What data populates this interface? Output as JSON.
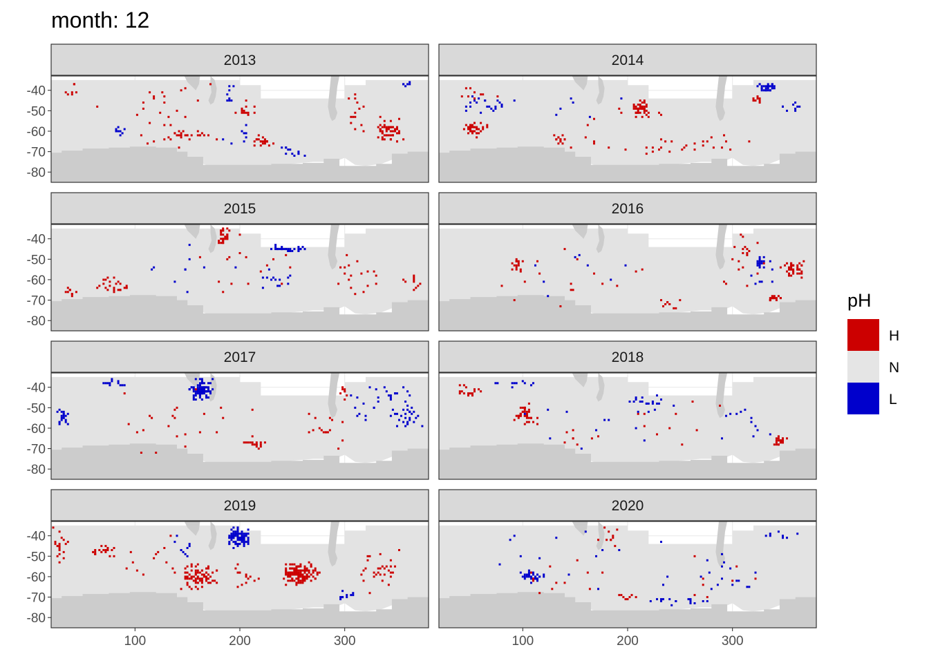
{
  "chart_data": {
    "type": "heatmap",
    "title": "month: 12",
    "xlabel": "",
    "ylabel": "",
    "xlim": [
      20,
      380
    ],
    "ylim": [
      -85,
      -33
    ],
    "x_ticks": [
      100,
      200,
      300
    ],
    "y_ticks": [
      -40,
      -50,
      -60,
      -70,
      -80
    ],
    "x_tick_labels": [
      "100",
      "200",
      "300"
    ],
    "y_tick_labels": [
      "-40",
      "-50",
      "-60",
      "-70",
      "-80"
    ],
    "legend": {
      "title": "pH",
      "position": "right",
      "entries": [
        {
          "label": "H",
          "color": "#cc0000"
        },
        {
          "label": "N",
          "color": "#e5e5e5"
        },
        {
          "label": "L",
          "color": "#0000cc"
        }
      ]
    },
    "colors": {
      "ocean": "#e3e3e3",
      "land": "#cccccc",
      "panel_background": "#ffffff",
      "strip_background": "#d9d9d9",
      "H": "#cc0000",
      "L": "#0000cc"
    },
    "panels": [
      {
        "year": "2013",
        "clusters": [
          {
            "c": "H",
            "x": 342,
            "y": -60,
            "w": 14,
            "h": 7,
            "n": 60
          },
          {
            "c": "H",
            "x": 223,
            "y": -65,
            "w": 10,
            "h": 3,
            "n": 22
          },
          {
            "c": "H",
            "x": 206,
            "y": -50,
            "w": 10,
            "h": 6,
            "n": 14
          },
          {
            "c": "H",
            "x": 150,
            "y": -62,
            "w": 28,
            "h": 3,
            "n": 22
          },
          {
            "c": "H",
            "x": 310,
            "y": -52,
            "w": 12,
            "h": 14,
            "n": 14
          },
          {
            "c": "H",
            "x": 40,
            "y": -40,
            "w": 8,
            "h": 4,
            "n": 8
          },
          {
            "c": "H",
            "x": 120,
            "y": -50,
            "w": 70,
            "h": 20,
            "n": 28
          },
          {
            "c": "L",
            "x": 190,
            "y": -42,
            "w": 6,
            "h": 5,
            "n": 8
          },
          {
            "c": "L",
            "x": 250,
            "y": -70,
            "w": 15,
            "h": 3,
            "n": 12
          },
          {
            "c": "L",
            "x": 85,
            "y": -60,
            "w": 10,
            "h": 3,
            "n": 8
          },
          {
            "c": "L",
            "x": 362,
            "y": -38,
            "w": 10,
            "h": 3,
            "n": 6
          },
          {
            "c": "L",
            "x": 200,
            "y": -62,
            "w": 25,
            "h": 5,
            "n": 8
          }
        ]
      },
      {
        "year": "2014",
        "clusters": [
          {
            "c": "H",
            "x": 53,
            "y": -59,
            "w": 14,
            "h": 4,
            "n": 40
          },
          {
            "c": "H",
            "x": 212,
            "y": -49,
            "w": 9,
            "h": 5,
            "n": 40
          },
          {
            "c": "H",
            "x": 135,
            "y": -64,
            "w": 8,
            "h": 3,
            "n": 14
          },
          {
            "c": "H",
            "x": 322,
            "y": -45,
            "w": 5,
            "h": 3,
            "n": 10
          },
          {
            "c": "H",
            "x": 280,
            "y": -66,
            "w": 40,
            "h": 6,
            "n": 14
          },
          {
            "c": "H",
            "x": 230,
            "y": -68,
            "w": 25,
            "h": 4,
            "n": 10
          },
          {
            "c": "H",
            "x": 60,
            "y": -42,
            "w": 30,
            "h": 6,
            "n": 10
          },
          {
            "c": "H",
            "x": 190,
            "y": -60,
            "w": 80,
            "h": 15,
            "n": 14
          },
          {
            "c": "L",
            "x": 333,
            "y": -38,
            "w": 10,
            "h": 2.5,
            "n": 30
          },
          {
            "c": "L",
            "x": 60,
            "y": -47,
            "w": 35,
            "h": 6,
            "n": 22
          },
          {
            "c": "L",
            "x": 357,
            "y": -48,
            "w": 10,
            "h": 3,
            "n": 10
          },
          {
            "c": "L",
            "x": 150,
            "y": -50,
            "w": 50,
            "h": 10,
            "n": 6
          }
        ]
      },
      {
        "year": "2015",
        "clusters": [
          {
            "c": "H",
            "x": 185,
            "y": -39,
            "w": 6,
            "h": 4,
            "n": 30
          },
          {
            "c": "H",
            "x": 80,
            "y": -63,
            "w": 18,
            "h": 5,
            "n": 24
          },
          {
            "c": "H",
            "x": 40,
            "y": -66,
            "w": 10,
            "h": 3,
            "n": 10
          },
          {
            "c": "H",
            "x": 310,
            "y": -58,
            "w": 30,
            "h": 14,
            "n": 18
          },
          {
            "c": "H",
            "x": 365,
            "y": -62,
            "w": 12,
            "h": 6,
            "n": 10
          },
          {
            "c": "H",
            "x": 200,
            "y": -52,
            "w": 80,
            "h": 16,
            "n": 16
          },
          {
            "c": "L",
            "x": 247,
            "y": -45,
            "w": 18,
            "h": 2,
            "n": 30
          },
          {
            "c": "L",
            "x": 235,
            "y": -60,
            "w": 20,
            "h": 6,
            "n": 14
          },
          {
            "c": "L",
            "x": 150,
            "y": -55,
            "w": 80,
            "h": 14,
            "n": 10
          }
        ]
      },
      {
        "year": "2016",
        "clusters": [
          {
            "c": "H",
            "x": 358,
            "y": -55,
            "w": 12,
            "h": 4,
            "n": 40
          },
          {
            "c": "H",
            "x": 340,
            "y": -69,
            "w": 6,
            "h": 2,
            "n": 18
          },
          {
            "c": "H",
            "x": 95,
            "y": -53,
            "w": 6,
            "h": 4,
            "n": 16
          },
          {
            "c": "H",
            "x": 240,
            "y": -72,
            "w": 20,
            "h": 3,
            "n": 10
          },
          {
            "c": "H",
            "x": 310,
            "y": -50,
            "w": 30,
            "h": 18,
            "n": 20
          },
          {
            "c": "H",
            "x": 150,
            "y": -60,
            "w": 80,
            "h": 18,
            "n": 16
          },
          {
            "c": "L",
            "x": 327,
            "y": -51,
            "w": 4,
            "h": 4,
            "n": 14
          },
          {
            "c": "L",
            "x": 330,
            "y": -60,
            "w": 15,
            "h": 10,
            "n": 8
          },
          {
            "c": "L",
            "x": 160,
            "y": -55,
            "w": 80,
            "h": 15,
            "n": 8
          }
        ]
      },
      {
        "year": "2017",
        "clusters": [
          {
            "c": "L",
            "x": 163,
            "y": -41,
            "w": 12,
            "h": 6,
            "n": 90
          },
          {
            "c": "L",
            "x": 32,
            "y": -54,
            "w": 6,
            "h": 6,
            "n": 20
          },
          {
            "c": "L",
            "x": 360,
            "y": -54,
            "w": 18,
            "h": 7,
            "n": 30
          },
          {
            "c": "L",
            "x": 82,
            "y": -38,
            "w": 14,
            "h": 2,
            "n": 12
          },
          {
            "c": "L",
            "x": 345,
            "y": -42,
            "w": 22,
            "h": 6,
            "n": 16
          },
          {
            "c": "L",
            "x": 320,
            "y": -50,
            "w": 20,
            "h": 8,
            "n": 10
          },
          {
            "c": "H",
            "x": 215,
            "y": -68,
            "w": 12,
            "h": 2,
            "n": 16
          },
          {
            "c": "H",
            "x": 280,
            "y": -61,
            "w": 25,
            "h": 10,
            "n": 16
          },
          {
            "c": "H",
            "x": 300,
            "y": -42,
            "w": 6,
            "h": 5,
            "n": 8
          },
          {
            "c": "H",
            "x": 150,
            "y": -60,
            "w": 100,
            "h": 20,
            "n": 24
          }
        ]
      },
      {
        "year": "2018",
        "clusters": [
          {
            "c": "H",
            "x": 103,
            "y": -53,
            "w": 12,
            "h": 7,
            "n": 40
          },
          {
            "c": "H",
            "x": 345,
            "y": -66,
            "w": 8,
            "h": 3,
            "n": 22
          },
          {
            "c": "H",
            "x": 50,
            "y": -42,
            "w": 14,
            "h": 4,
            "n": 16
          },
          {
            "c": "H",
            "x": 160,
            "y": -65,
            "w": 30,
            "h": 6,
            "n": 8
          },
          {
            "c": "H",
            "x": 260,
            "y": -60,
            "w": 60,
            "h": 15,
            "n": 10
          },
          {
            "c": "L",
            "x": 220,
            "y": -48,
            "w": 20,
            "h": 6,
            "n": 18
          },
          {
            "c": "L",
            "x": 310,
            "y": -55,
            "w": 30,
            "h": 12,
            "n": 12
          },
          {
            "c": "L",
            "x": 90,
            "y": -38,
            "w": 25,
            "h": 2,
            "n": 10
          },
          {
            "c": "L",
            "x": 180,
            "y": -58,
            "w": 80,
            "h": 15,
            "n": 12
          }
        ]
      },
      {
        "year": "2019",
        "clusters": [
          {
            "c": "H",
            "x": 257,
            "y": -59,
            "w": 20,
            "h": 6,
            "n": 150
          },
          {
            "c": "H",
            "x": 162,
            "y": -60,
            "w": 20,
            "h": 7,
            "n": 80
          },
          {
            "c": "H",
            "x": 335,
            "y": -58,
            "w": 22,
            "h": 12,
            "n": 30
          },
          {
            "c": "H",
            "x": 70,
            "y": -48,
            "w": 12,
            "h": 4,
            "n": 18
          },
          {
            "c": "H",
            "x": 30,
            "y": -45,
            "w": 10,
            "h": 10,
            "n": 18
          },
          {
            "c": "H",
            "x": 205,
            "y": -60,
            "w": 15,
            "h": 8,
            "n": 14
          },
          {
            "c": "H",
            "x": 120,
            "y": -50,
            "w": 40,
            "h": 15,
            "n": 14
          },
          {
            "c": "L",
            "x": 199,
            "y": -41,
            "w": 11,
            "h": 5,
            "n": 90
          },
          {
            "c": "L",
            "x": 300,
            "y": -70,
            "w": 15,
            "h": 5,
            "n": 10
          },
          {
            "c": "L",
            "x": 145,
            "y": -45,
            "w": 15,
            "h": 8,
            "n": 10
          }
        ]
      },
      {
        "year": "2020",
        "clusters": [
          {
            "c": "L",
            "x": 108,
            "y": -60,
            "w": 15,
            "h": 3,
            "n": 40
          },
          {
            "c": "L",
            "x": 250,
            "y": -72,
            "w": 40,
            "h": 2,
            "n": 16
          },
          {
            "c": "L",
            "x": 300,
            "y": -60,
            "w": 40,
            "h": 15,
            "n": 16
          },
          {
            "c": "L",
            "x": 150,
            "y": -50,
            "w": 100,
            "h": 20,
            "n": 16
          },
          {
            "c": "L",
            "x": 345,
            "y": -40,
            "w": 20,
            "h": 4,
            "n": 8
          },
          {
            "c": "H",
            "x": 180,
            "y": -40,
            "w": 12,
            "h": 6,
            "n": 10
          },
          {
            "c": "H",
            "x": 200,
            "y": -70,
            "w": 10,
            "h": 2,
            "n": 8
          },
          {
            "c": "H",
            "x": 130,
            "y": -60,
            "w": 60,
            "h": 12,
            "n": 12
          },
          {
            "c": "H",
            "x": 290,
            "y": -60,
            "w": 40,
            "h": 15,
            "n": 8
          }
        ]
      }
    ]
  }
}
